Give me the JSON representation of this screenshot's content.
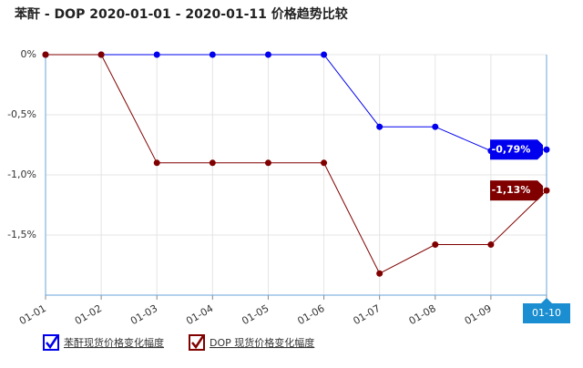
{
  "chart_data": {
    "type": "line",
    "title": "苯酐 - DOP 2020-01-01 - 2020-01-11 价格趋势比较",
    "categories": [
      "01-01",
      "01-02",
      "01-03",
      "01-04",
      "01-05",
      "01-06",
      "01-07",
      "01-08",
      "01-09",
      "01-10"
    ],
    "series": [
      {
        "name": "苯酐现货价格变化幅度",
        "color": "#0000ee",
        "values": [
          0,
          0,
          0,
          0,
          0,
          0,
          -0.6,
          -0.6,
          -0.8,
          -0.79
        ],
        "value_labels": [
          null,
          null,
          null,
          null,
          null,
          null,
          null,
          null,
          null,
          "-0,79%"
        ]
      },
      {
        "name": "DOP 现货价格变化幅度",
        "color": "#800000",
        "values": [
          0,
          0,
          -0.9,
          -0.9,
          -0.9,
          -0.9,
          -1.82,
          -1.58,
          -1.58,
          -1.13
        ],
        "value_labels": [
          null,
          null,
          null,
          null,
          null,
          null,
          null,
          null,
          null,
          "-1,13%"
        ]
      }
    ],
    "ylim": [
      -2,
      0
    ],
    "yticks": [
      {
        "value": 0,
        "label": "0%"
      },
      {
        "value": -0.5,
        "label": "-0,5%"
      },
      {
        "value": -1,
        "label": "-1,0%"
      },
      {
        "value": -1.5,
        "label": "-1,5%"
      }
    ],
    "grid": true,
    "legend": "bottom"
  }
}
